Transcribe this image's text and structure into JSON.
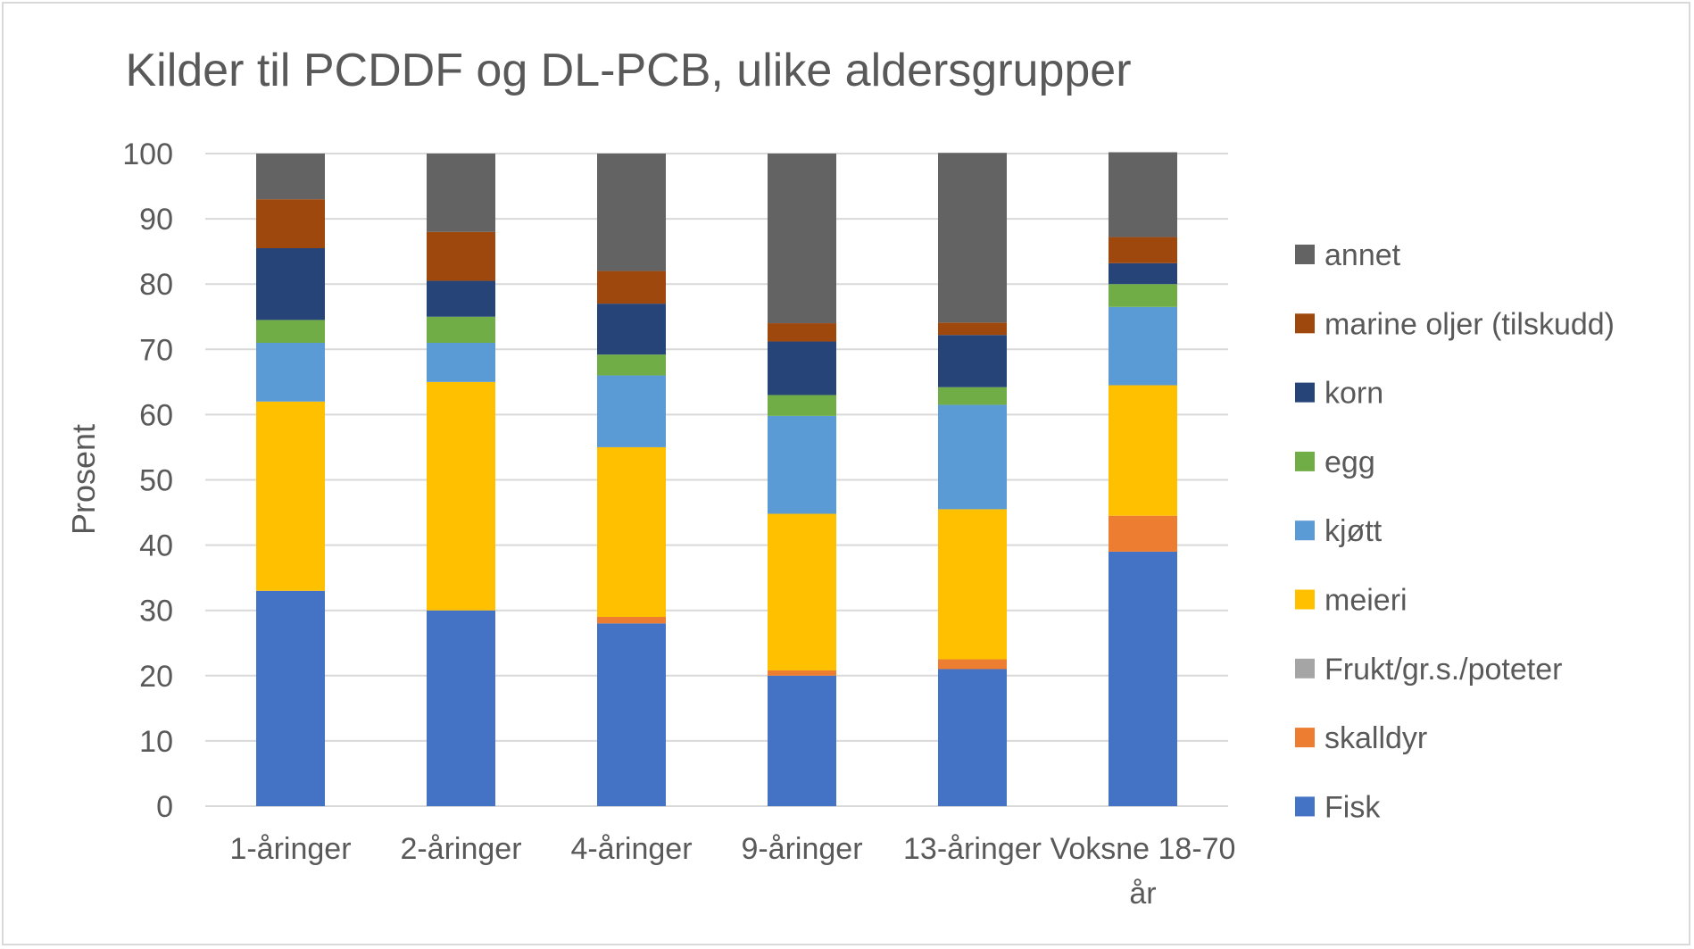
{
  "chart_data": {
    "type": "bar",
    "stacked": true,
    "title": "Kilder til PCDDF og DL-PCB, ulike aldersgrupper",
    "xlabel": "",
    "ylabel": "Prosent",
    "ylim": [
      0,
      100
    ],
    "yticks": [
      "0",
      "10",
      "20",
      "30",
      "40",
      "50",
      "60",
      "70",
      "80",
      "90",
      "100"
    ],
    "grid": true,
    "legend_position": "right",
    "categories": [
      "1-åringer",
      "2-åringer",
      "4-åringer",
      "9-åringer",
      "13-åringer",
      "Voksne 18-70 år"
    ],
    "series": [
      {
        "name": "Fisk",
        "color": "#4472c4",
        "values": [
          33,
          30,
          28,
          20,
          21,
          39
        ]
      },
      {
        "name": "skalldyr",
        "color": "#ed7d31",
        "values": [
          0,
          0,
          1,
          0.8,
          1.5,
          5.5
        ]
      },
      {
        "name": "Frukt/gr.s./poteter",
        "color": "#a5a5a5",
        "values": [
          0,
          0,
          0,
          0,
          0,
          0
        ]
      },
      {
        "name": "meieri",
        "color": "#ffc000",
        "values": [
          29,
          35,
          26,
          24,
          23,
          20
        ]
      },
      {
        "name": "kjøtt",
        "color": "#5b9bd5",
        "values": [
          9,
          6,
          11,
          15,
          16,
          12
        ]
      },
      {
        "name": "egg",
        "color": "#70ad47",
        "values": [
          3.5,
          4,
          3.2,
          3.2,
          2.7,
          3.5
        ]
      },
      {
        "name": "korn",
        "color": "#264478",
        "values": [
          11,
          5.5,
          7.8,
          8.2,
          8,
          3.2
        ]
      },
      {
        "name": "marine oljer (tilskudd)",
        "color": "#9e480e",
        "values": [
          7.5,
          7.5,
          5,
          2.8,
          1.9,
          4
        ]
      },
      {
        "name": "annet",
        "color": "#636363",
        "values": [
          7,
          12,
          18,
          26,
          26,
          13
        ]
      }
    ]
  }
}
